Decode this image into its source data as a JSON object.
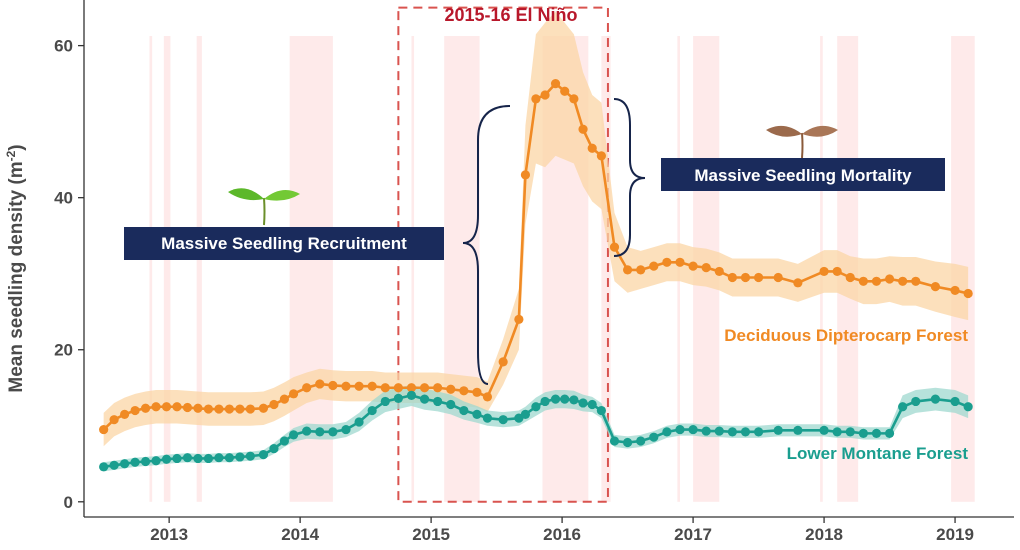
{
  "chart_data": {
    "type": "line",
    "title": "",
    "xlabel": "",
    "ylabel_main": "Mean seedling density (m",
    "ylabel_sup": "-2",
    "ylabel_end": ")",
    "xlim": [
      2012.35,
      2019.45
    ],
    "ylim": [
      -2,
      66
    ],
    "xticks": [
      2013,
      2014,
      2015,
      2016,
      2017,
      2018,
      2019
    ],
    "xtick_labels": [
      "2013",
      "2014",
      "2015",
      "2016",
      "2017",
      "2018",
      "2019"
    ],
    "yticks": [
      0,
      20,
      40,
      60
    ],
    "ytick_labels": [
      "0",
      "20",
      "40",
      "60"
    ],
    "grid": false,
    "dry_season_bands": [
      [
        2012.85,
        2012.87
      ],
      [
        2012.96,
        2013.01
      ],
      [
        2013.21,
        2013.25
      ],
      [
        2013.92,
        2014.25
      ],
      [
        2014.85,
        2014.87
      ],
      [
        2015.1,
        2015.37
      ],
      [
        2015.85,
        2016.2
      ],
      [
        2016.3,
        2016.37
      ],
      [
        2016.88,
        2016.9
      ],
      [
        2017.0,
        2017.2
      ],
      [
        2017.97,
        2017.99
      ],
      [
        2018.1,
        2018.26
      ],
      [
        2018.97,
        2019.15
      ]
    ],
    "series": [
      {
        "name": "Deciduous Dipterocarp Forest",
        "color": "#f08a24",
        "band_color": "#fbd5a6",
        "x": [
          2012.5,
          2012.58,
          2012.66,
          2012.74,
          2012.82,
          2012.9,
          2012.98,
          2013.06,
          2013.14,
          2013.22,
          2013.3,
          2013.38,
          2013.46,
          2013.54,
          2013.62,
          2013.72,
          2013.8,
          2013.88,
          2013.95,
          2014.05,
          2014.15,
          2014.25,
          2014.35,
          2014.45,
          2014.55,
          2014.65,
          2014.75,
          2014.85,
          2014.95,
          2015.05,
          2015.15,
          2015.25,
          2015.35,
          2015.43,
          2015.55,
          2015.67,
          2015.72,
          2015.8,
          2015.87,
          2015.95,
          2016.02,
          2016.09,
          2016.16,
          2016.23,
          2016.3,
          2016.4,
          2016.5,
          2016.6,
          2016.7,
          2016.8,
          2016.9,
          2017.0,
          2017.1,
          2017.2,
          2017.3,
          2017.4,
          2017.5,
          2017.65,
          2017.8,
          2018.0,
          2018.1,
          2018.2,
          2018.3,
          2018.4,
          2018.5,
          2018.6,
          2018.7,
          2018.85,
          2019.0,
          2019.1
        ],
        "values": [
          9.5,
          10.8,
          11.5,
          12.0,
          12.3,
          12.5,
          12.5,
          12.5,
          12.4,
          12.3,
          12.2,
          12.2,
          12.2,
          12.2,
          12.2,
          12.3,
          12.8,
          13.5,
          14.2,
          15.0,
          15.5,
          15.3,
          15.2,
          15.2,
          15.2,
          15.0,
          15.0,
          15.0,
          15.0,
          15.0,
          14.8,
          14.6,
          14.4,
          13.8,
          18.4,
          24.0,
          43.0,
          53.0,
          53.5,
          55.0,
          54.0,
          53.0,
          49.0,
          46.5,
          45.5,
          33.5,
          30.5,
          30.5,
          31.0,
          31.5,
          31.5,
          31.0,
          30.8,
          30.3,
          29.5,
          29.5,
          29.5,
          29.5,
          28.8,
          30.3,
          30.3,
          29.5,
          29.0,
          29.0,
          29.3,
          29.0,
          29.0,
          28.3,
          27.8,
          27.4
        ],
        "band_halfwidth": [
          2.2,
          2.2,
          2.2,
          2.2,
          2.2,
          2.2,
          2.2,
          2.2,
          2.2,
          2.2,
          2.2,
          2.2,
          2.2,
          2.2,
          2.2,
          2.2,
          2.2,
          2.2,
          2.2,
          2.0,
          2.0,
          2.0,
          2.0,
          2.0,
          2.0,
          2.0,
          2.0,
          2.0,
          2.0,
          2.0,
          2.0,
          2.0,
          2.0,
          2.0,
          3.0,
          4.0,
          6.5,
          8.5,
          9.5,
          9.5,
          9.0,
          8.5,
          7.5,
          7.0,
          7.0,
          4.5,
          3.0,
          2.5,
          2.5,
          2.5,
          2.5,
          2.5,
          2.5,
          2.5,
          2.5,
          2.5,
          2.5,
          2.5,
          2.5,
          2.8,
          2.8,
          2.8,
          3.0,
          3.0,
          3.0,
          3.2,
          3.2,
          3.3,
          3.5,
          3.5
        ]
      },
      {
        "name": "Lower Montane Forest",
        "color": "#1a9e8f",
        "band_color": "#9fd8cf",
        "x": [
          2012.5,
          2012.58,
          2012.66,
          2012.74,
          2012.82,
          2012.9,
          2012.98,
          2013.06,
          2013.14,
          2013.22,
          2013.3,
          2013.38,
          2013.46,
          2013.54,
          2013.62,
          2013.72,
          2013.8,
          2013.88,
          2013.95,
          2014.05,
          2014.15,
          2014.25,
          2014.35,
          2014.45,
          2014.55,
          2014.65,
          2014.75,
          2014.85,
          2014.95,
          2015.05,
          2015.15,
          2015.25,
          2015.35,
          2015.43,
          2015.55,
          2015.67,
          2015.72,
          2015.8,
          2015.87,
          2015.95,
          2016.02,
          2016.09,
          2016.16,
          2016.23,
          2016.3,
          2016.4,
          2016.5,
          2016.6,
          2016.7,
          2016.8,
          2016.9,
          2017.0,
          2017.1,
          2017.2,
          2017.3,
          2017.4,
          2017.5,
          2017.65,
          2017.8,
          2018.0,
          2018.1,
          2018.2,
          2018.3,
          2018.4,
          2018.5,
          2018.6,
          2018.7,
          2018.85,
          2019.0,
          2019.1
        ],
        "values": [
          4.6,
          4.8,
          5.0,
          5.2,
          5.3,
          5.4,
          5.6,
          5.7,
          5.8,
          5.7,
          5.7,
          5.8,
          5.8,
          5.9,
          6.0,
          6.2,
          7.0,
          8.0,
          8.8,
          9.3,
          9.2,
          9.2,
          9.5,
          10.5,
          12.0,
          13.2,
          13.6,
          14.0,
          13.5,
          13.2,
          12.8,
          12.0,
          11.5,
          11.0,
          10.8,
          11.0,
          11.5,
          12.5,
          13.2,
          13.5,
          13.5,
          13.4,
          13.0,
          12.8,
          12.0,
          8.0,
          7.8,
          8.0,
          8.5,
          9.2,
          9.5,
          9.5,
          9.3,
          9.3,
          9.2,
          9.2,
          9.2,
          9.4,
          9.4,
          9.4,
          9.2,
          9.2,
          9.0,
          9.0,
          9.0,
          12.5,
          13.2,
          13.5,
          13.2,
          12.5
        ],
        "band_halfwidth": [
          0.6,
          0.6,
          0.6,
          0.6,
          0.6,
          0.6,
          0.6,
          0.6,
          0.6,
          0.6,
          0.6,
          0.6,
          0.6,
          0.6,
          0.6,
          0.6,
          0.7,
          0.8,
          0.9,
          1.0,
          1.0,
          1.0,
          1.0,
          1.2,
          1.3,
          1.4,
          1.4,
          1.4,
          1.4,
          1.3,
          1.3,
          1.2,
          1.1,
          1.0,
          1.0,
          1.0,
          1.0,
          1.2,
          1.2,
          1.2,
          1.2,
          1.2,
          1.1,
          1.0,
          1.0,
          0.8,
          0.8,
          0.8,
          0.8,
          0.8,
          0.8,
          0.8,
          0.8,
          0.8,
          0.8,
          0.8,
          0.8,
          0.8,
          0.8,
          0.8,
          0.8,
          0.8,
          0.8,
          0.8,
          0.8,
          1.5,
          1.5,
          1.5,
          1.5,
          1.5
        ]
      }
    ],
    "annotations": {
      "elnino": {
        "label": "2015-16 El Niño",
        "x_range": [
          2014.75,
          2016.35
        ],
        "y_range": [
          0,
          65
        ],
        "color": "#d9534f",
        "label_color": "#b8182b"
      },
      "recruitment_label": "Massive Seedling Recruitment",
      "mortality_label": "Massive Seedling Mortality",
      "box_color": "#1a2b5c",
      "brace_color": "#16244a",
      "series_labels": {
        "ddf": "Deciduous Dipterocarp Forest",
        "lmf": "Lower Montane Forest"
      }
    }
  }
}
